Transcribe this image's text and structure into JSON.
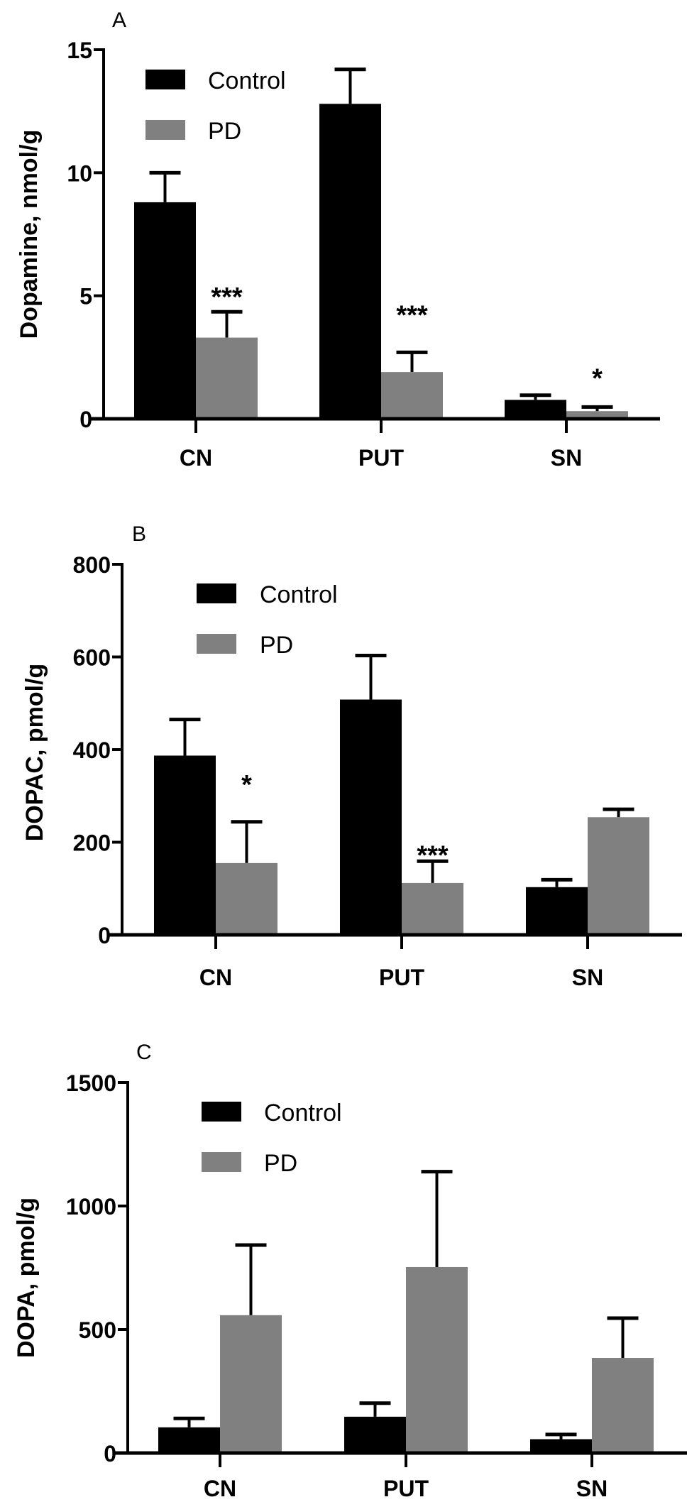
{
  "chart_data": [
    {
      "type": "bar",
      "panel_label": "A",
      "ylabel": "Dopamine, nmol/g",
      "ylim": [
        0,
        15
      ],
      "yticks": [
        "0",
        "5",
        "10",
        "15"
      ],
      "categories": [
        "CN",
        "PUT",
        "SN"
      ],
      "legend": "top-left",
      "series": [
        {
          "name": "Control",
          "color": "#000000",
          "values": [
            8.8,
            12.8,
            0.77
          ],
          "errors": [
            1.2,
            1.4,
            0.19
          ]
        },
        {
          "name": "PD",
          "color": "#808080",
          "values": [
            3.3,
            1.9,
            0.31
          ],
          "errors": [
            1.05,
            0.8,
            0.17
          ]
        }
      ],
      "annotations": [
        {
          "category": "CN",
          "series": "PD",
          "text": "***"
        },
        {
          "category": "PUT",
          "series": "PD",
          "text": "***"
        },
        {
          "category": "SN",
          "series": "PD",
          "text": "*"
        }
      ]
    },
    {
      "type": "bar",
      "panel_label": "B",
      "ylabel": "DOPAC, pmol/g",
      "ylim": [
        0,
        800
      ],
      "yticks": [
        "0",
        "200",
        "400",
        "600",
        "800"
      ],
      "categories": [
        "CN",
        "PUT",
        "SN"
      ],
      "legend": "top-left",
      "series": [
        {
          "name": "Control",
          "color": "#000000",
          "values": [
            387,
            508,
            103
          ],
          "errors": [
            78,
            95,
            16
          ]
        },
        {
          "name": "PD",
          "color": "#808080",
          "values": [
            155,
            112,
            254
          ],
          "errors": [
            89,
            47,
            17
          ]
        }
      ],
      "annotations": [
        {
          "category": "CN",
          "series": "PD",
          "text": "*"
        },
        {
          "category": "PUT",
          "series": "PD",
          "text": "***"
        }
      ]
    },
    {
      "type": "bar",
      "panel_label": "C",
      "ylabel": "DOPA, pmol/g",
      "ylim": [
        0,
        1500
      ],
      "yticks": [
        "0",
        "500",
        "1000",
        "1500"
      ],
      "categories": [
        "CN",
        "PUT",
        "SN"
      ],
      "legend": "top-left",
      "series": [
        {
          "name": "Control",
          "color": "#000000",
          "values": [
            104,
            147,
            56
          ],
          "errors": [
            36,
            55,
            19
          ]
        },
        {
          "name": "PD",
          "color": "#808080",
          "values": [
            558,
            753,
            385
          ],
          "errors": [
            284,
            386,
            161
          ]
        }
      ],
      "annotations": []
    }
  ]
}
